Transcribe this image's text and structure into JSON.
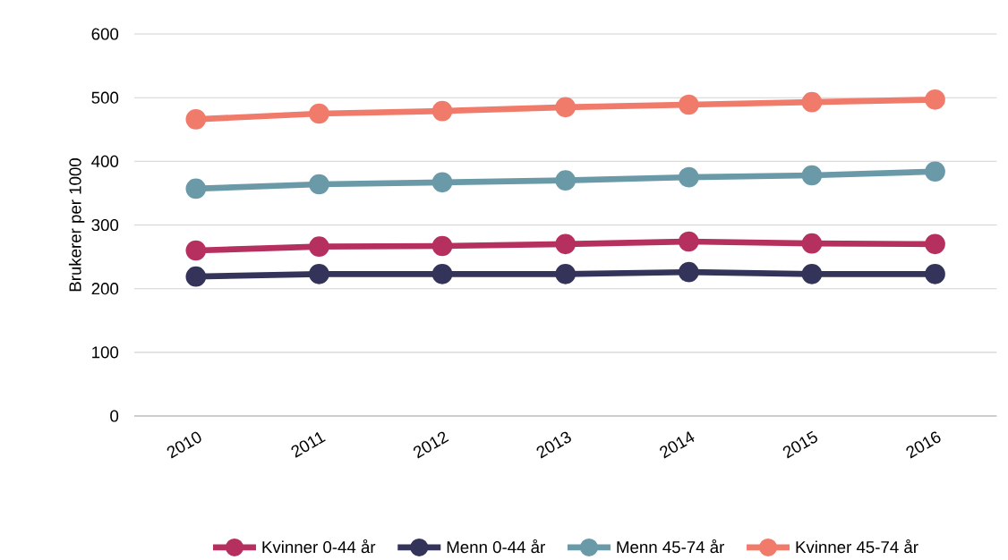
{
  "chart_data": {
    "type": "line",
    "ylabel": "Brukerer per 1000",
    "categories": [
      "2010",
      "2011",
      "2012",
      "2013",
      "2014",
      "2015",
      "2016"
    ],
    "series": [
      {
        "name": "Kvinner 0-44 år",
        "color": "#b5305e",
        "values": [
          260,
          266,
          267,
          270,
          274,
          271,
          270
        ]
      },
      {
        "name": "Menn 0-44 år",
        "color": "#34335a",
        "values": [
          219,
          223,
          223,
          223,
          226,
          223,
          223
        ]
      },
      {
        "name": "Menn 45-74 år",
        "color": "#6a9aa8",
        "values": [
          357,
          364,
          367,
          370,
          375,
          378,
          384
        ]
      },
      {
        "name": "Kvinner 45-74 år",
        "color": "#f07b6b",
        "values": [
          466,
          475,
          479,
          485,
          489,
          493,
          497
        ]
      }
    ],
    "ylim": [
      0,
      600
    ],
    "yticks": [
      0,
      100,
      200,
      300,
      400,
      500,
      600
    ],
    "grid": "y",
    "legend": "bottom",
    "marker": "circle",
    "line_style": "solid"
  }
}
